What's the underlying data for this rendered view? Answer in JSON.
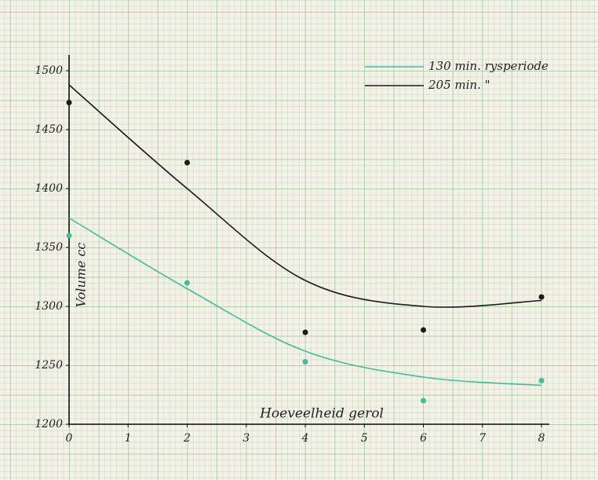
{
  "chart_data": {
    "type": "line",
    "x": [
      0,
      2,
      4,
      6,
      8
    ],
    "xlim": [
      0,
      8
    ],
    "xticks": [
      0,
      1,
      2,
      3,
      4,
      5,
      6,
      7,
      8
    ],
    "ylim": [
      1200,
      1500
    ],
    "yticks": [
      1200,
      1250,
      1300,
      1350,
      1400,
      1450,
      1500
    ],
    "x_label": "Hoeveelheid gerol",
    "y_label": "Volume cc",
    "series": [
      {
        "name": "130 min. rysperiode",
        "color": "#3fbf98",
        "values": [
          1375,
          1315,
          1262,
          1240,
          1233
        ],
        "points": [
          1360,
          1320,
          1253,
          1220,
          1237
        ]
      },
      {
        "name": "205 min.  \"",
        "color": "#1a1a1a",
        "values": [
          1488,
          1400,
          1322,
          1300,
          1305
        ],
        "points": [
          1473,
          1422,
          1278,
          1280,
          1308
        ]
      }
    ]
  }
}
